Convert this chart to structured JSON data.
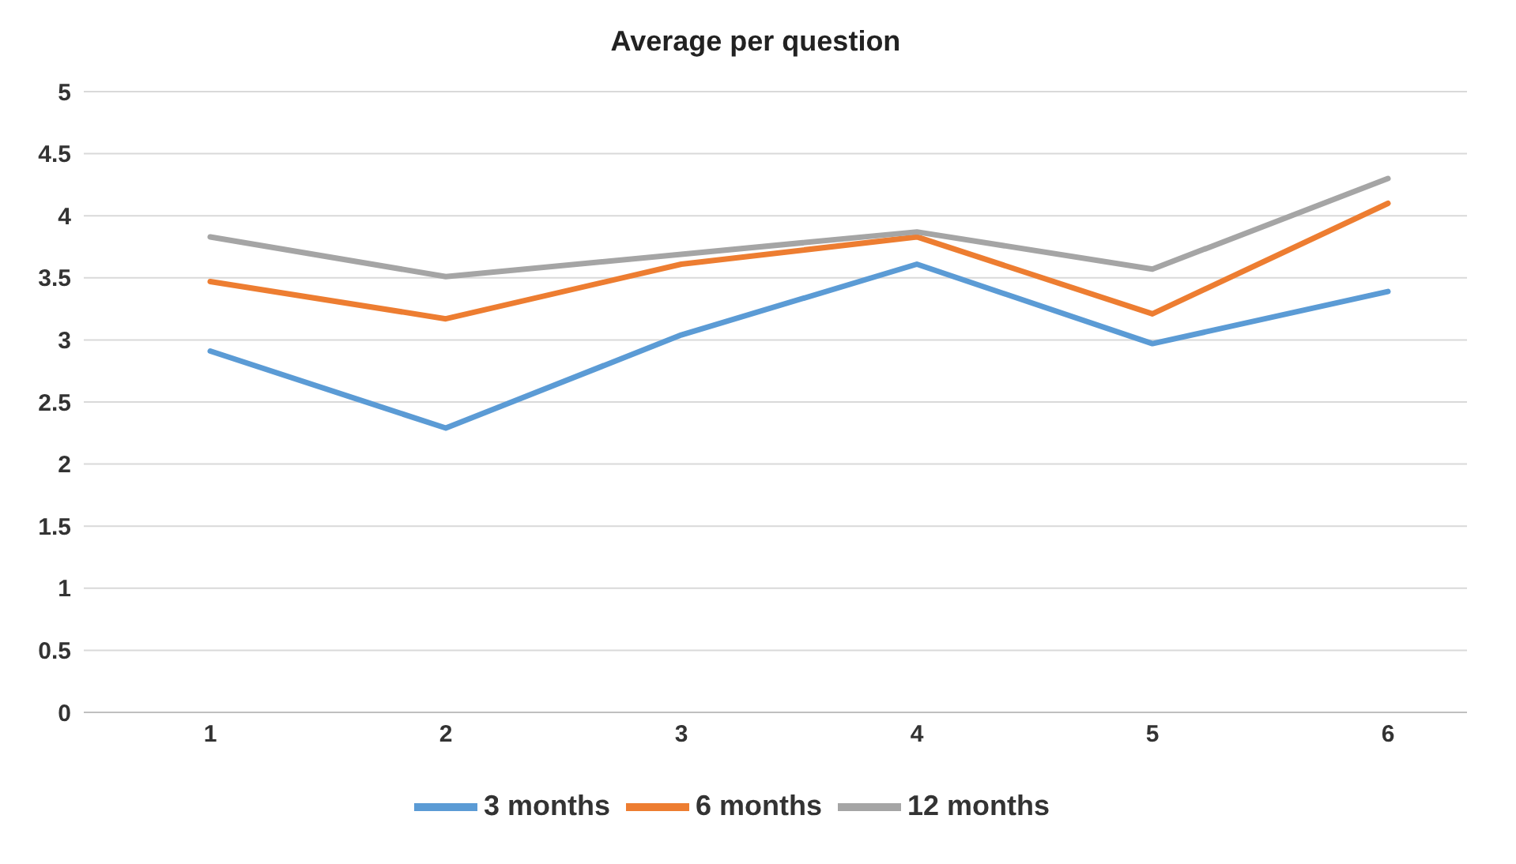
{
  "chart_data": {
    "type": "line",
    "title": "Average per question",
    "categories": [
      "1",
      "2",
      "3",
      "4",
      "5",
      "6"
    ],
    "series": [
      {
        "name": "3 months",
        "color": "#5b9bd5",
        "values": [
          2.91,
          2.29,
          3.04,
          3.61,
          2.97,
          3.39
        ]
      },
      {
        "name": "6 months",
        "color": "#ed7d31",
        "values": [
          3.47,
          3.17,
          3.61,
          3.83,
          3.21,
          4.1
        ]
      },
      {
        "name": "12 months",
        "color": "#a5a5a5",
        "values": [
          3.83,
          3.51,
          3.69,
          3.87,
          3.57,
          4.3
        ]
      }
    ],
    "ylim": [
      0,
      5
    ],
    "yticks": [
      0,
      0.5,
      1,
      1.5,
      2,
      2.5,
      3,
      3.5,
      4,
      4.5,
      5
    ],
    "grid": "y",
    "legend": "bottom",
    "marker": "none",
    "line_style": "solid"
  }
}
